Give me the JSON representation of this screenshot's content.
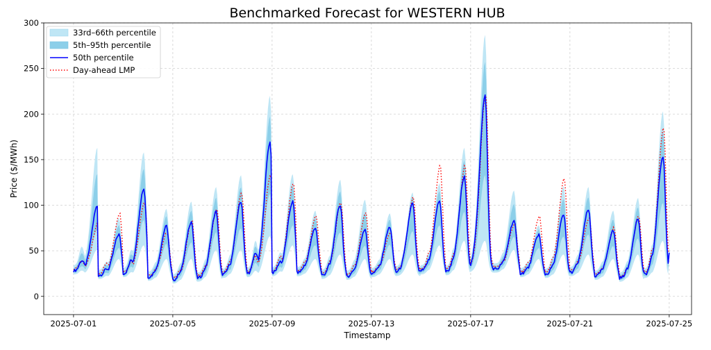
{
  "chart_data": {
    "type": "line",
    "title": "Benchmarked Forecast for WESTERN HUB",
    "xlabel": "Timestamp",
    "ylabel": "Price ($/MWh)",
    "ylim": [
      -20,
      300
    ],
    "x_range_days": [
      -1.2,
      24.9
    ],
    "grid": true,
    "legend_position": "top-left",
    "x_ticks": [
      {
        "day": 0,
        "label": "2025-07-01"
      },
      {
        "day": 4,
        "label": "2025-07-05"
      },
      {
        "day": 8,
        "label": "2025-07-09"
      },
      {
        "day": 12,
        "label": "2025-07-13"
      },
      {
        "day": 16,
        "label": "2025-07-17"
      },
      {
        "day": 20,
        "label": "2025-07-21"
      },
      {
        "day": 24,
        "label": "2025-07-25"
      }
    ],
    "y_ticks": [
      0,
      50,
      100,
      150,
      200,
      250,
      300
    ],
    "legend": [
      {
        "label": "33rd–66th percentile",
        "kind": "band",
        "color": "#bfe6f5"
      },
      {
        "label": "5th–95th percentile",
        "kind": "band",
        "color": "#8ccfe9"
      },
      {
        "label": "50th percentile",
        "kind": "line",
        "color": "#0000ff"
      },
      {
        "label": "Day-ahead LMP",
        "kind": "dotted",
        "color": "#ff0000"
      }
    ],
    "daily_profile": {
      "days": [
        "2025-07-01",
        "2025-07-02",
        "2025-07-03",
        "2025-07-04",
        "2025-07-05",
        "2025-07-06",
        "2025-07-07",
        "2025-07-08",
        "2025-07-09",
        "2025-07-10",
        "2025-07-11",
        "2025-07-12",
        "2025-07-13",
        "2025-07-14",
        "2025-07-15",
        "2025-07-16",
        "2025-07-17",
        "2025-07-18",
        "2025-07-19",
        "2025-07-20",
        "2025-07-21",
        "2025-07-22",
        "2025-07-23",
        "2025-07-24",
        "2025-07-25"
      ],
      "min_price": [
        28,
        23,
        25,
        21,
        18,
        20,
        24,
        25,
        26,
        26,
        23,
        22,
        25,
        26,
        28,
        27,
        30,
        30,
        25,
        24,
        26,
        22,
        20,
        24,
        48
      ],
      "median_peak": [
        99,
        68,
        118,
        77,
        82,
        93,
        104,
        169,
        104,
        75,
        100,
        74,
        76,
        102,
        105,
        131,
        220,
        83,
        68,
        89,
        95,
        72,
        85,
        154,
        48
      ],
      "band_upper_peak": [
        157,
        80,
        152,
        90,
        98,
        114,
        127,
        214,
        128,
        88,
        122,
        100,
        85,
        108,
        118,
        157,
        281,
        110,
        72,
        115,
        114,
        88,
        102,
        197,
        48
      ],
      "band_lower_peak": [
        55,
        45,
        60,
        45,
        45,
        55,
        55,
        70,
        60,
        45,
        50,
        45,
        45,
        50,
        60,
        65,
        65,
        55,
        45,
        50,
        50,
        45,
        50,
        65,
        45
      ],
      "lmp_peak": [
        80,
        91,
        103,
        70,
        82,
        95,
        113,
        133,
        124,
        88,
        103,
        92,
        70,
        108,
        143,
        143,
        222,
        80,
        88,
        129,
        86,
        75,
        88,
        185,
        48
      ],
      "peak_hour": [
        23,
        20,
        20,
        18,
        18,
        18,
        18,
        22,
        20,
        18,
        18,
        18,
        18,
        16,
        18,
        18,
        14,
        18,
        18,
        18,
        18,
        18,
        18,
        18,
        0
      ]
    }
  }
}
